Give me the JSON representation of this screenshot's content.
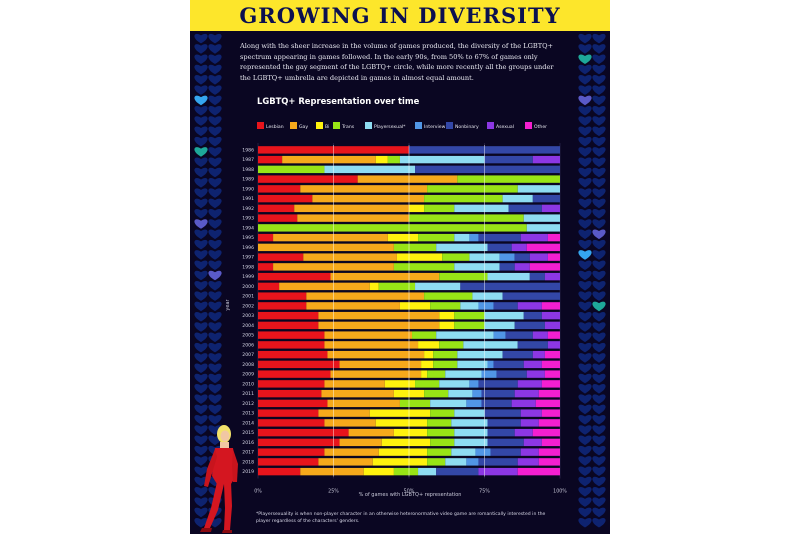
{
  "header": {
    "title": "GROWING IN DIVERSITY",
    "intro": "Along with the sheer increase in the volume of games produced, the diversity of the LGBTQ+ spectrum appearing in games followed. In the early 90s, from 50% to 67% of games only represented the gay segment of the LGBTQ+ circle, while more recently all the groups under the LGBTQ+ umbrella are depicted in games in almost equal amount."
  },
  "footnote": "*Playersexuality is when non-player character in an otherwise heteronormative video game are romantically interested in the player regardless of the characters' genders.",
  "colors": {
    "background": "#0a0622",
    "title_bar": "#fde62b",
    "title_text": "#0b1050",
    "heart": "#0e2370",
    "heart_accent_blue": "#35a6f0",
    "heart_accent_teal": "#1ea89a",
    "heart_accent_purple": "#5a5ac8"
  },
  "chart_data": {
    "type": "bar",
    "orientation": "horizontal",
    "stacked": true,
    "title": "LGBTQ+ Representation over time",
    "xlabel": "% of games with LGBTQ+ representation",
    "ylabel": "year",
    "xlim": [
      0,
      100
    ],
    "x_ticks": [
      "0%",
      "25%",
      "50%",
      "75%",
      "100%"
    ],
    "grid": true,
    "legend_position": "top",
    "categories": [
      "1986",
      "1987",
      "1988",
      "1989",
      "1990",
      "1991",
      "1992",
      "1993",
      "1994",
      "1995",
      "1996",
      "1997",
      "1998",
      "1999",
      "2000",
      "2001",
      "2002",
      "2003",
      "2004",
      "2005",
      "2006",
      "2007",
      "2008",
      "2009",
      "2010",
      "2011",
      "2012",
      "2013",
      "2014",
      "2015",
      "2016",
      "2017",
      "2018",
      "2019"
    ],
    "series": [
      {
        "name": "Lesbian",
        "color": "#e8141c",
        "values": [
          50,
          8,
          0,
          33,
          14,
          18,
          12,
          13,
          0,
          5,
          0,
          15,
          5,
          24,
          7,
          16,
          16,
          20,
          20,
          22,
          22,
          23,
          27,
          24,
          22,
          21,
          23,
          20,
          22,
          30,
          27,
          22,
          20,
          14
        ]
      },
      {
        "name": "Gay",
        "color": "#f6a91b",
        "values": [
          0,
          31,
          0,
          33,
          42,
          37,
          38,
          37,
          0,
          38,
          45,
          31,
          40,
          36,
          30,
          39,
          31,
          40,
          40,
          29,
          31,
          32,
          27,
          30,
          20,
          24,
          24,
          17,
          17,
          15,
          14,
          18,
          18,
          21
        ]
      },
      {
        "name": "Bi",
        "color": "#fff20e",
        "values": [
          0,
          4,
          0,
          0,
          0,
          0,
          5,
          0,
          0,
          10,
          0,
          15,
          0,
          0,
          3,
          0,
          10,
          5,
          5,
          0,
          7,
          3,
          4,
          2,
          10,
          10,
          0,
          20,
          17,
          11,
          16,
          16,
          18,
          10
        ]
      },
      {
        "name": "Trans",
        "color": "#98e416",
        "values": [
          0,
          4,
          22,
          34,
          30,
          26,
          10,
          38,
          89,
          12,
          14,
          9,
          20,
          16,
          12,
          16,
          10,
          10,
          10,
          8,
          8,
          8,
          8,
          6,
          8,
          8,
          10,
          8,
          8,
          9,
          8,
          8,
          6,
          8
        ]
      },
      {
        "name": "Playersexual*",
        "color": "#8edcf2",
        "values": [
          0,
          28,
          30,
          0,
          14,
          10,
          18,
          12,
          11,
          5,
          17,
          10,
          15,
          14,
          15,
          10,
          6,
          13,
          10,
          19,
          18,
          15,
          10,
          12,
          10,
          8,
          12,
          10,
          12,
          11,
          11,
          8,
          7,
          6
        ]
      },
      {
        "name": "Interview",
        "color": "#5196e6",
        "values": [
          0,
          0,
          0,
          0,
          0,
          0,
          0,
          0,
          0,
          3,
          0,
          5,
          0,
          0,
          0,
          0,
          5,
          0,
          0,
          4,
          0,
          0,
          2,
          5,
          3,
          3,
          5,
          0,
          0,
          0,
          0,
          5,
          4,
          0
        ]
      },
      {
        "name": "Nonbinary",
        "color": "#3347a7",
        "values": [
          50,
          16,
          48,
          0,
          0,
          9,
          11,
          0,
          0,
          14,
          8,
          5,
          5,
          5,
          33,
          19,
          8,
          6,
          10,
          9,
          10,
          10,
          10,
          10,
          13,
          11,
          10,
          12,
          11,
          9,
          12,
          10,
          13,
          14
        ]
      },
      {
        "name": "Asexual",
        "color": "#8c37e4",
        "values": [
          0,
          9,
          0,
          0,
          0,
          0,
          6,
          0,
          0,
          9,
          5,
          6,
          5,
          5,
          0,
          0,
          8,
          6,
          5,
          5,
          4,
          4,
          6,
          6,
          8,
          8,
          8,
          7,
          6,
          6,
          6,
          6,
          7,
          13
        ]
      },
      {
        "name": "Other",
        "color": "#f41fd0",
        "values": [
          0,
          0,
          0,
          0,
          0,
          0,
          0,
          0,
          0,
          4,
          11,
          4,
          10,
          0,
          0,
          0,
          6,
          0,
          0,
          4,
          0,
          5,
          6,
          5,
          6,
          7,
          8,
          6,
          7,
          9,
          6,
          7,
          7,
          14
        ]
      }
    ]
  }
}
